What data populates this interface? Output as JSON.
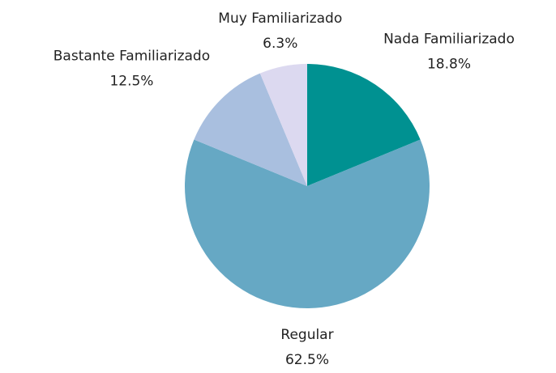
{
  "chart_data": {
    "type": "pie",
    "categories": [
      "Nada Familiarizado",
      "Regular",
      "Bastante Familiarizado",
      "Muy Familiarizado"
    ],
    "values": [
      18.8,
      62.5,
      12.5,
      6.3
    ],
    "value_labels": [
      "18.8%",
      "62.5%",
      "12.5%",
      "6.3%"
    ],
    "colors": [
      "#009191",
      "#66a8c4",
      "#a9bfdf",
      "#dcd9f0"
    ]
  }
}
